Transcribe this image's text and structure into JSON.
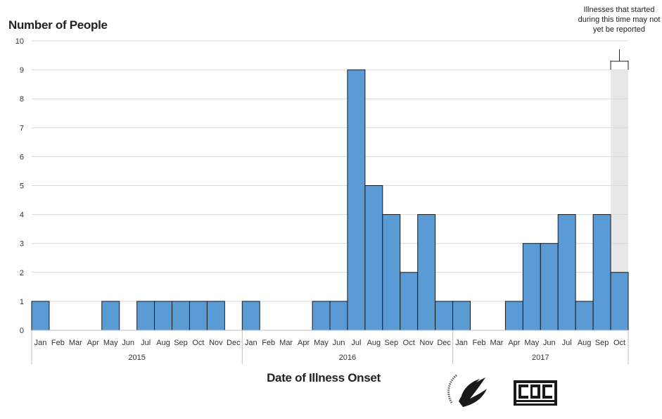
{
  "chart_data": {
    "type": "bar",
    "ylabel": "Number of People",
    "xlabel": "Date of Illness Onset",
    "ylim": [
      0,
      10
    ],
    "yticks": [
      0,
      1,
      2,
      3,
      4,
      5,
      6,
      7,
      8,
      9,
      10
    ],
    "grid": true,
    "categories": [
      "Jan",
      "Feb",
      "Mar",
      "Apr",
      "May",
      "Jun",
      "Jul",
      "Aug",
      "Sep",
      "Oct",
      "Nov",
      "Dec",
      "Jan",
      "Feb",
      "Mar",
      "Apr",
      "May",
      "Jun",
      "Jul",
      "Aug",
      "Sep",
      "Oct",
      "Nov",
      "Dec",
      "Jan",
      "Feb",
      "Mar",
      "Apr",
      "May",
      "Jun",
      "Jul",
      "Aug",
      "Sep",
      "Oct"
    ],
    "values": [
      1,
      0,
      0,
      0,
      1,
      0,
      1,
      1,
      1,
      1,
      1,
      0,
      1,
      0,
      0,
      0,
      1,
      1,
      9,
      5,
      4,
      2,
      4,
      1,
      1,
      0,
      0,
      1,
      3,
      3,
      4,
      1,
      4,
      2
    ],
    "years": [
      {
        "label": "2015",
        "count": 12
      },
      {
        "label": "2016",
        "count": 12
      },
      {
        "label": "2017",
        "count": 10
      }
    ],
    "bar_color": "#5b9bd5",
    "shaded_region_color": "#e7e7e7",
    "annotation": "Illnesses that started during this time may not yet be reported"
  }
}
